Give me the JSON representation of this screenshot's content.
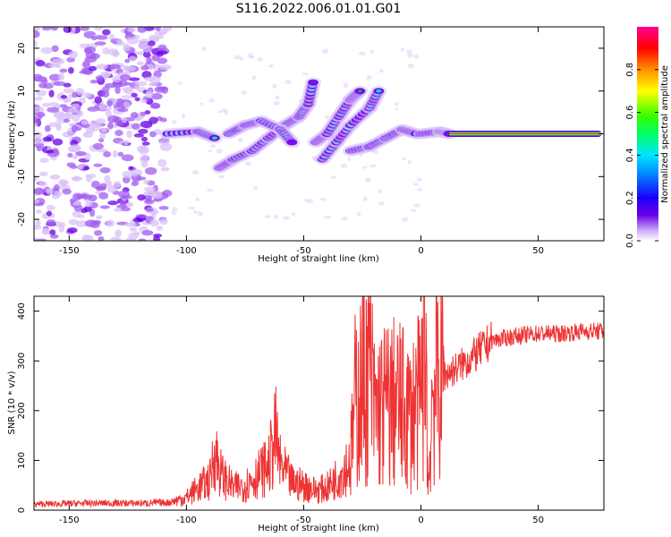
{
  "title": "S116.2022.006.01.01.G01",
  "chart_data": [
    {
      "type": "heatmap",
      "xlabel": "Height of straight line (km)",
      "ylabel": "Frequency (Hz)",
      "xlim": [
        -165,
        78
      ],
      "ylim": [
        -25,
        25
      ],
      "x_ticks": [
        -150,
        -100,
        -50,
        0,
        50
      ],
      "y_ticks": [
        -20,
        -10,
        0,
        10,
        20
      ],
      "colorbar": {
        "label": "Normalized spectral amplitude",
        "range": [
          0,
          1
        ],
        "ticks": [
          0.0,
          0.2,
          0.4,
          0.6,
          0.8
        ],
        "colormap": [
          "#ffffff",
          "#a15cf2",
          "#6a00e6",
          "#0000ff",
          "#00e5ff",
          "#00ff00",
          "#ffff00",
          "#ff8000",
          "#ff0000",
          "#ff0090"
        ]
      },
      "features": [
        {
          "x_range": [
            -165,
            -108
          ],
          "freq_range": [
            -25,
            25
          ],
          "amplitude": 0.1
        },
        {
          "x_range": [
            -108,
            -85
          ],
          "freq_center": 0,
          "amplitude": 0.3
        },
        {
          "x_range": [
            -85,
            -45
          ],
          "freq_center": [
            -8,
            12
          ],
          "amplitude": 0.2
        },
        {
          "x_range": [
            -45,
            -20
          ],
          "freq_center": [
            -2,
            10
          ],
          "amplitude": 0.2
        },
        {
          "x_range": [
            -25,
            12
          ],
          "freq_center": [
            -4,
            0
          ],
          "amplitude": 0.35
        },
        {
          "x_range": [
            12,
            77
          ],
          "freq_center": 0,
          "amplitude": 1.0
        }
      ]
    },
    {
      "type": "line",
      "xlabel": "Height of straight line (km)",
      "ylabel": "SNR (10 * v/v)",
      "xlim": [
        -165,
        78
      ],
      "ylim": [
        0,
        430
      ],
      "x_ticks": [
        -150,
        -100,
        -50,
        0,
        50
      ],
      "y_ticks": [
        0,
        100,
        200,
        300,
        400
      ],
      "color": "#ee3333",
      "series": [
        {
          "x": [
            -165,
            -140,
            -120,
            -108,
            -100,
            -95,
            -90,
            -88,
            -85,
            -80,
            -75,
            -70,
            -65,
            -62,
            -60,
            -55,
            -50,
            -45,
            -40,
            -35,
            -30,
            -28,
            -25,
            -22,
            -20,
            -15,
            -10,
            -5,
            0,
            2,
            3,
            5,
            8,
            10,
            15,
            20,
            25,
            30,
            35,
            40,
            50,
            60,
            70,
            77
          ],
          "y": [
            12,
            14,
            14,
            15,
            25,
            45,
            60,
            120,
            70,
            45,
            50,
            70,
            90,
            150,
            90,
            55,
            50,
            40,
            45,
            70,
            100,
            220,
            250,
            300,
            200,
            210,
            215,
            190,
            220,
            430,
            30,
            250,
            260,
            270,
            285,
            300,
            320,
            340,
            345,
            350,
            355,
            355,
            360,
            360
          ]
        }
      ]
    }
  ]
}
